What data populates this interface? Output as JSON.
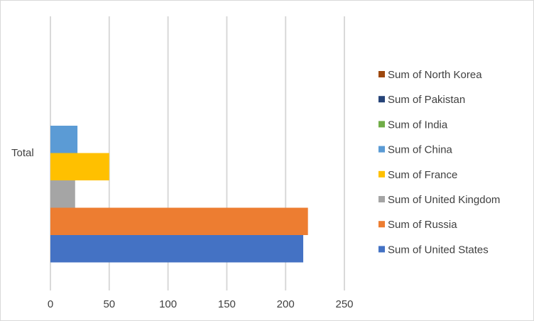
{
  "chart_data": {
    "type": "bar",
    "orientation": "horizontal",
    "categories": [
      "Total"
    ],
    "series": [
      {
        "name": "Sum of United States",
        "values": [
          215
        ],
        "color": "#4472C4"
      },
      {
        "name": "Sum of Russia",
        "values": [
          219
        ],
        "color": "#ED7D31"
      },
      {
        "name": "Sum of United Kingdom",
        "values": [
          21
        ],
        "color": "#A5A5A5"
      },
      {
        "name": "Sum of France",
        "values": [
          50
        ],
        "color": "#FFC000"
      },
      {
        "name": "Sum of China",
        "values": [
          23
        ],
        "color": "#5B9BD5"
      },
      {
        "name": "Sum of India",
        "values": [
          0
        ],
        "color": "#70AD47"
      },
      {
        "name": "Sum of Pakistan",
        "values": [
          0
        ],
        "color": "#264478"
      },
      {
        "name": "Sum of North Korea",
        "values": [
          0
        ],
        "color": "#9E480E"
      }
    ],
    "xlim": [
      0,
      250
    ],
    "xticks": [
      0,
      50,
      100,
      150,
      200,
      250
    ],
    "grid": true,
    "legend_position": "right",
    "title": "",
    "xlabel": "",
    "ylabel": ""
  }
}
